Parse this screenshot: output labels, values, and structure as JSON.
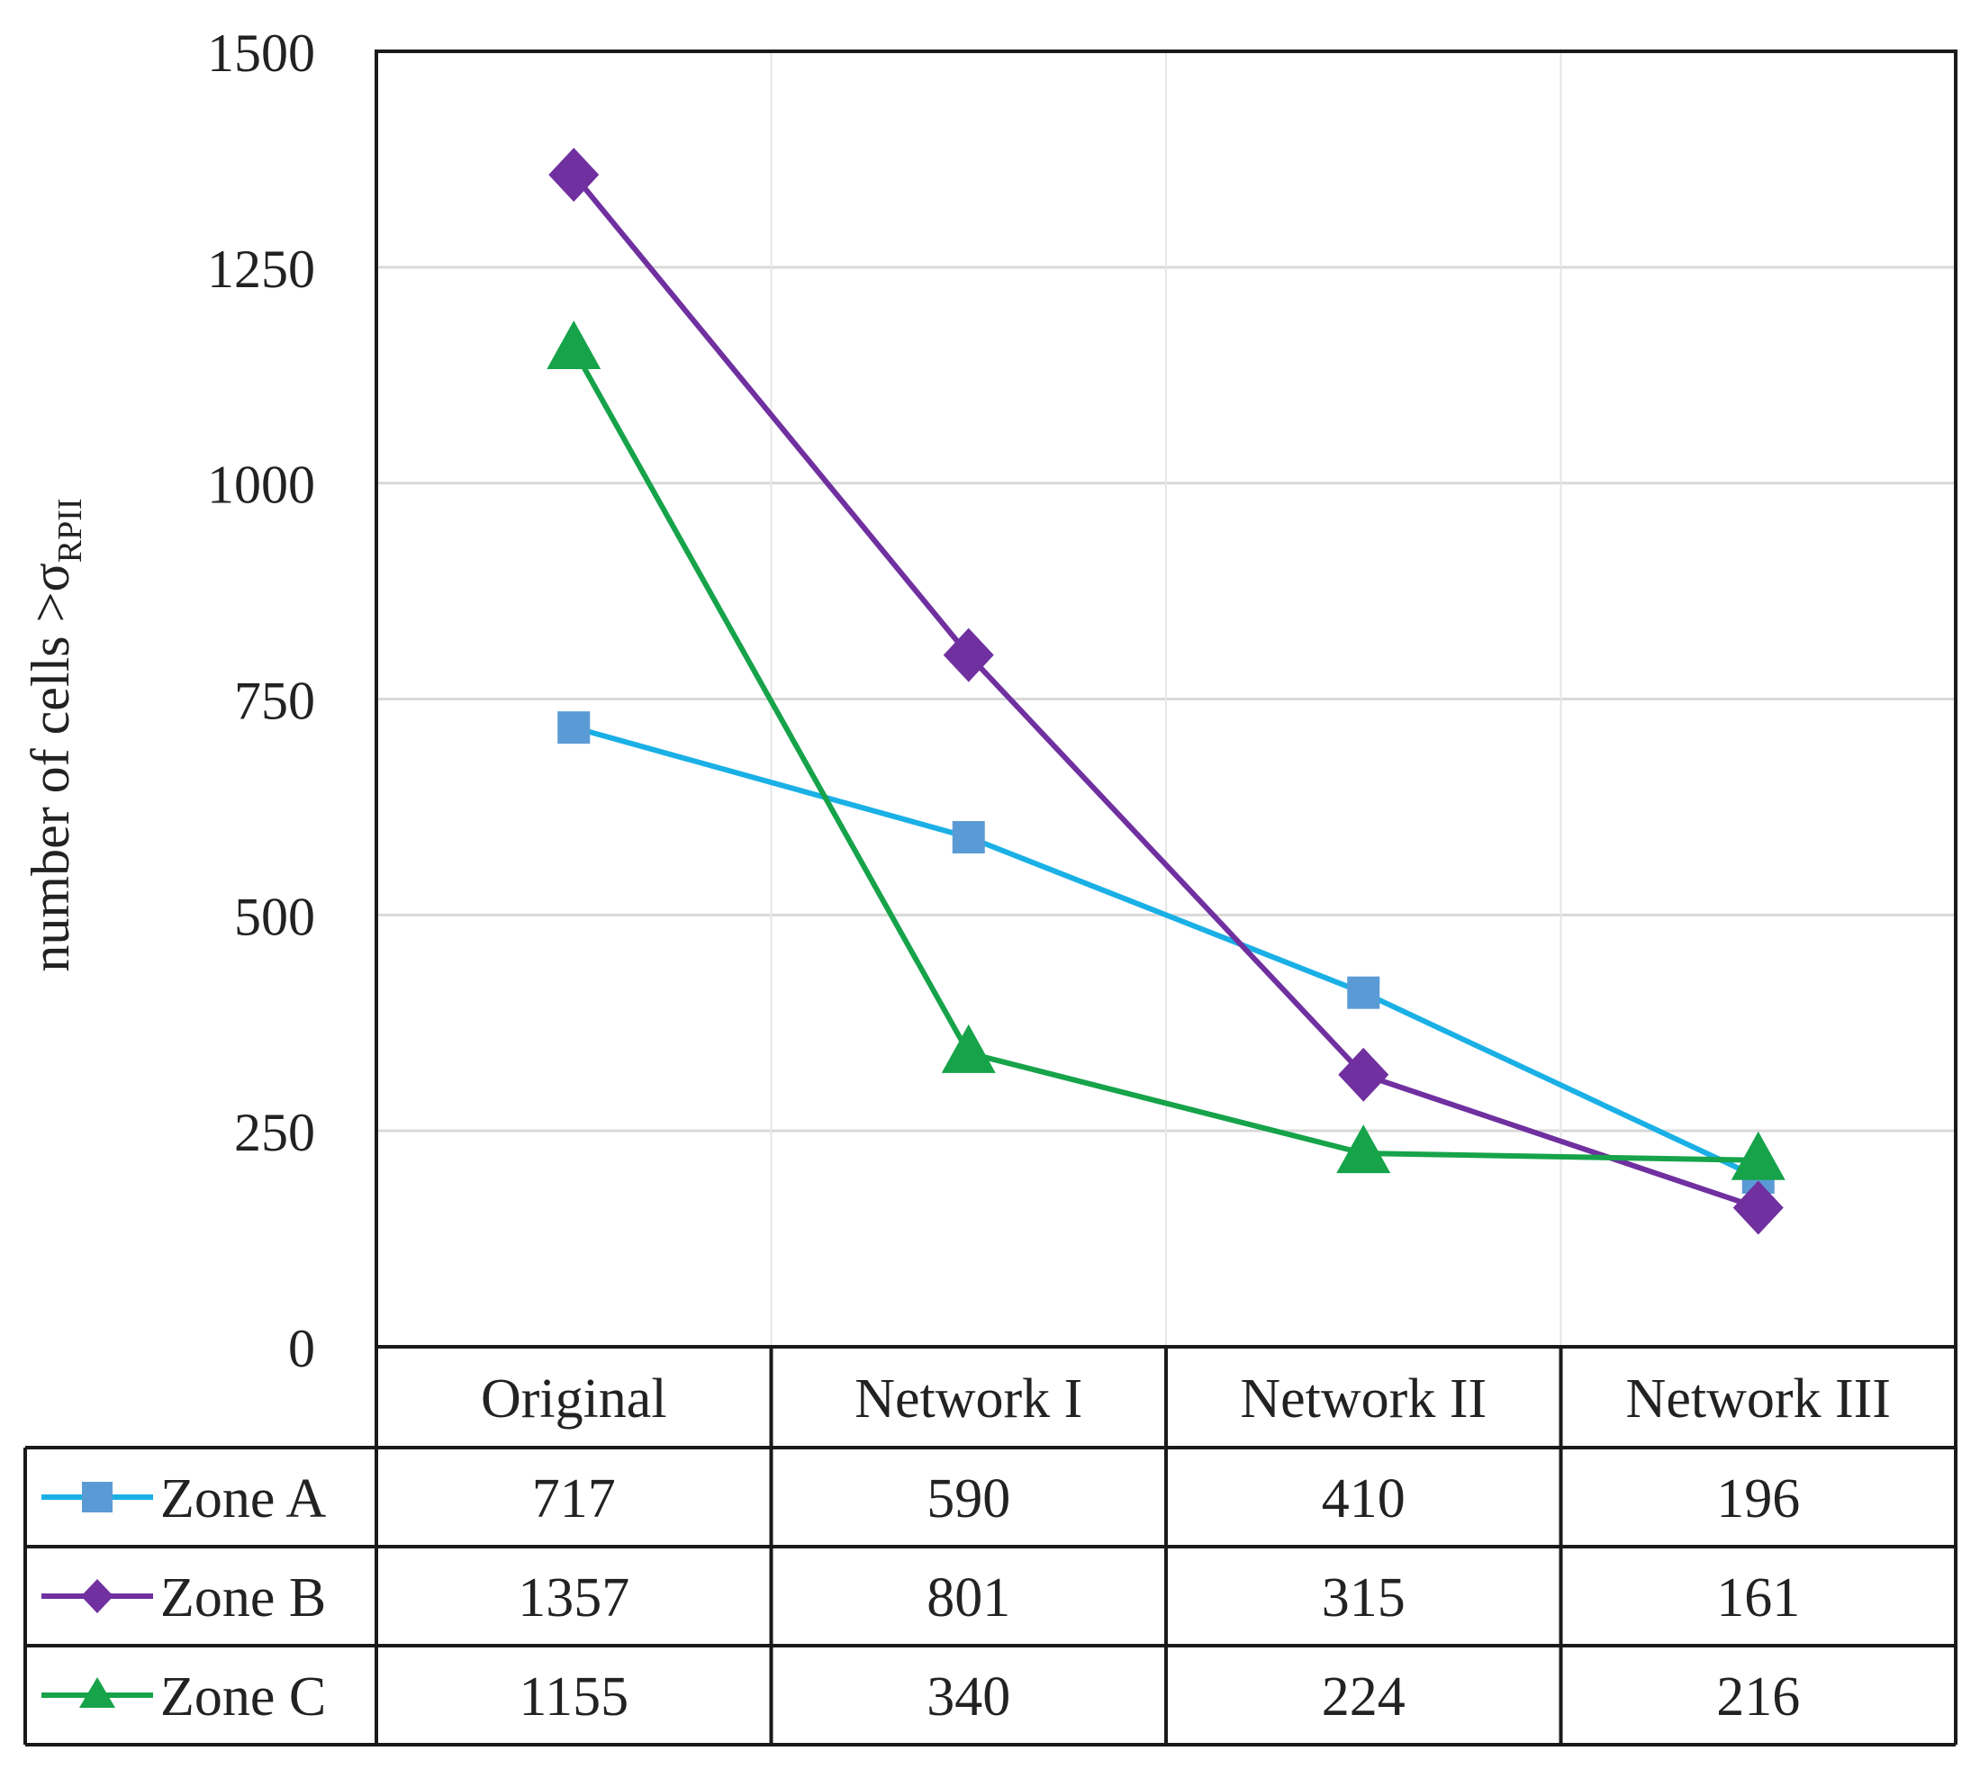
{
  "chart_data": {
    "type": "line",
    "categories": [
      "Original",
      "Network I",
      "Network II",
      "Network III"
    ],
    "ylabel": "number of cells >σ",
    "ylabel_subscript": "RPII",
    "ylim": [
      0,
      1500
    ],
    "yticks": [
      0,
      250,
      500,
      750,
      1000,
      1250,
      1500
    ],
    "grid": true,
    "legend": "data-table",
    "series": [
      {
        "name": "Zone A",
        "values": [
          717,
          590,
          410,
          196
        ],
        "color": "#1ab0e6",
        "marker": "square",
        "marker_color": "#5b9bd5"
      },
      {
        "name": "Zone B",
        "values": [
          1357,
          801,
          315,
          161
        ],
        "color": "#7030a0",
        "marker": "diamond",
        "marker_color": "#7030a0"
      },
      {
        "name": "Zone C",
        "values": [
          1155,
          340,
          224,
          216
        ],
        "color": "#16a34a",
        "marker": "triangle",
        "marker_color": "#16a34a"
      }
    ]
  }
}
